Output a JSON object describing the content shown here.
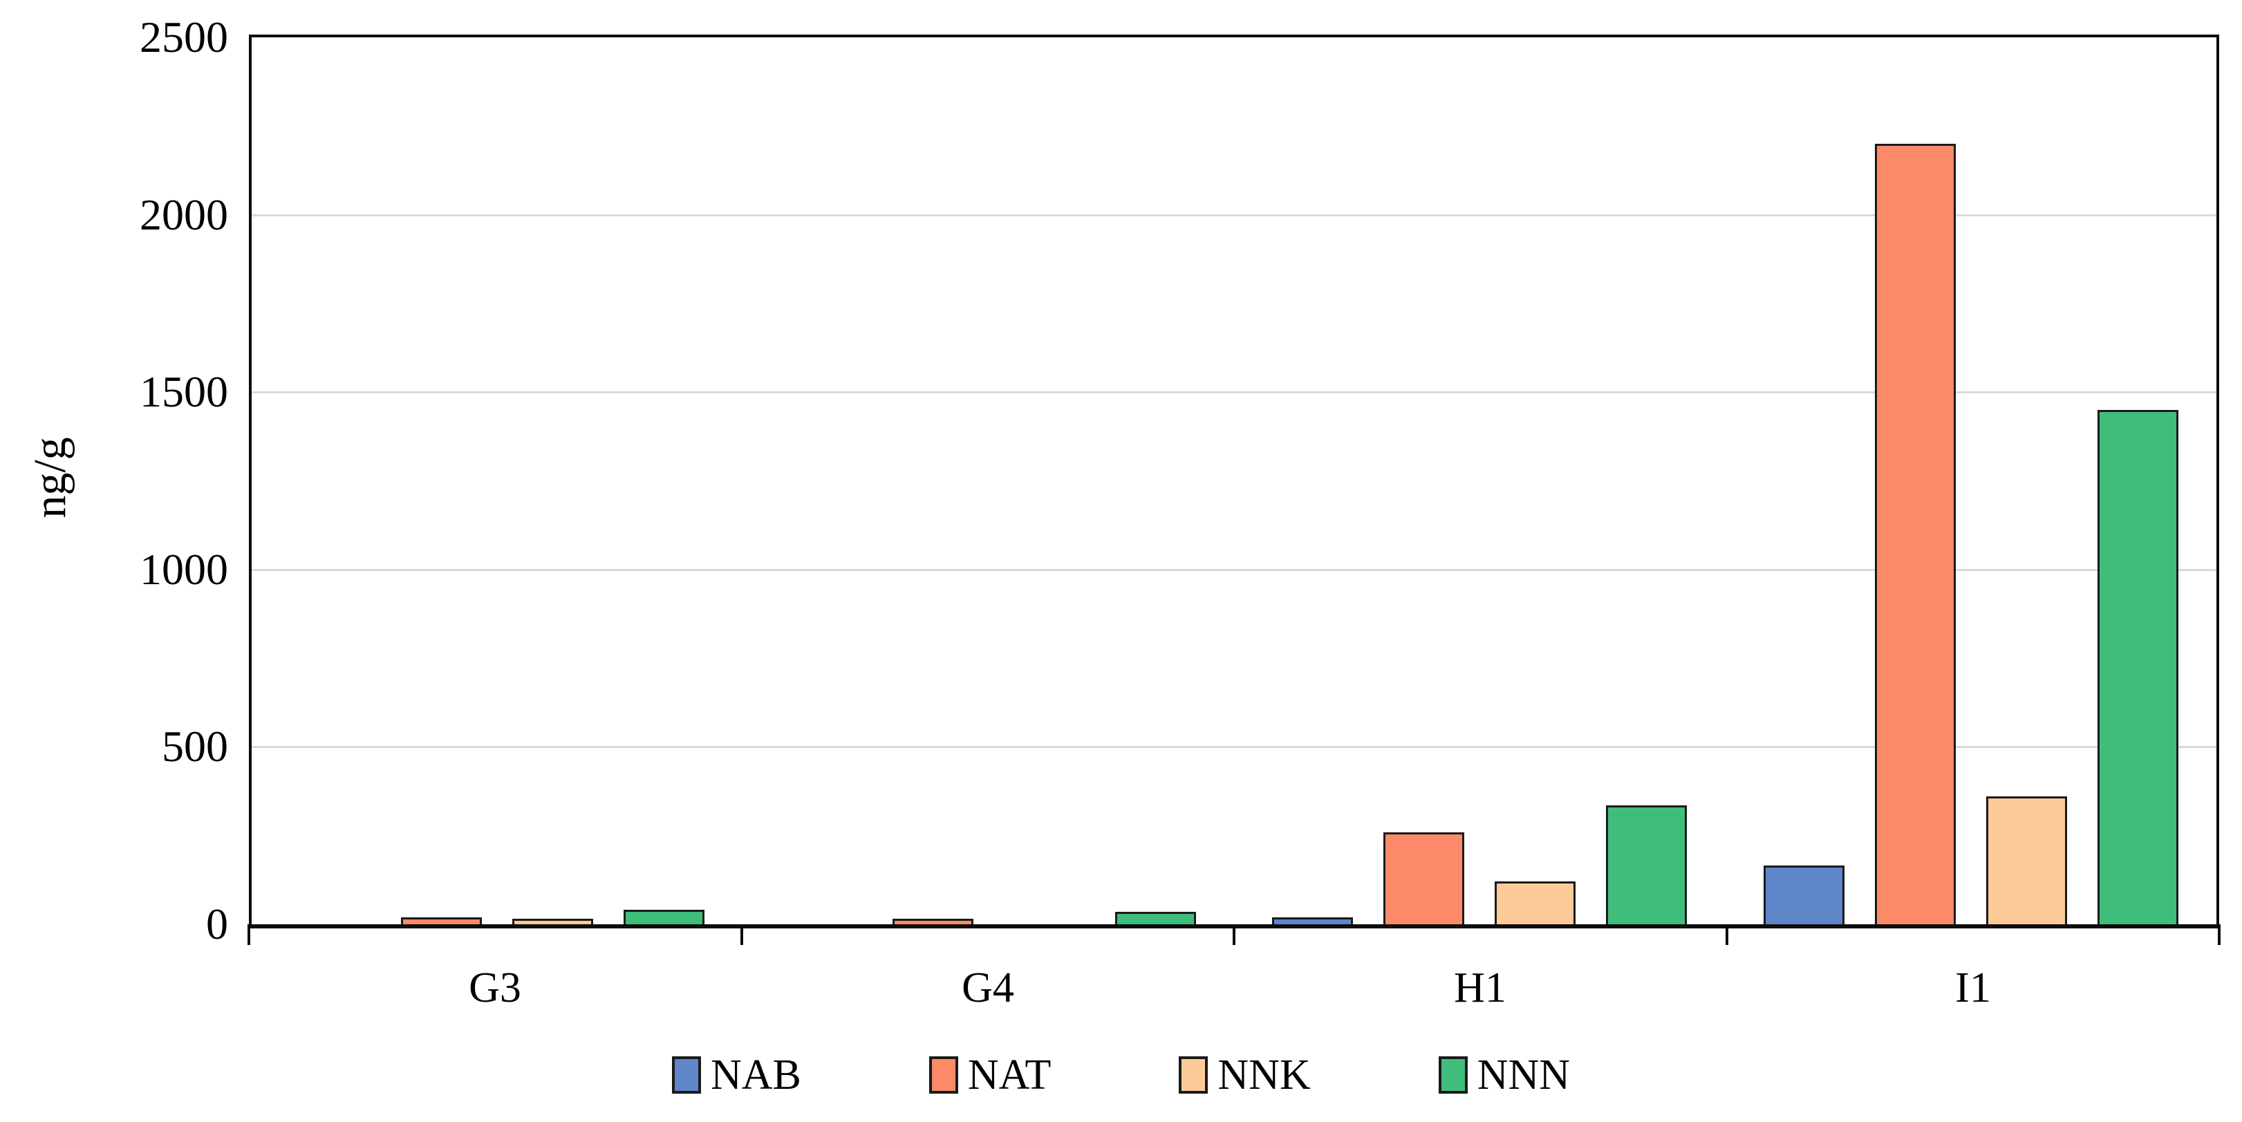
{
  "chart_data": {
    "type": "bar",
    "title": "",
    "categories": [
      "G3",
      "G4",
      "H1",
      "I1"
    ],
    "series": [
      {
        "name": "NAB",
        "color": "#5E86C8",
        "values": [
          0,
          0,
          20,
          165
        ]
      },
      {
        "name": "NAT",
        "color": "#FB8A68",
        "values": [
          20,
          15,
          260,
          2200
        ]
      },
      {
        "name": "NNK",
        "color": "#FDCB98",
        "values": [
          15,
          0,
          120,
          360
        ]
      },
      {
        "name": "NNN",
        "color": "#3FBE7B",
        "values": [
          40,
          35,
          335,
          1450
        ]
      }
    ],
    "xlabel": "",
    "ylabel": "ng/g",
    "ylim": [
      0,
      2500
    ],
    "yticks": [
      0,
      500,
      1000,
      1500,
      2000,
      2500
    ],
    "grid": "horizontal",
    "gridline_color": "#D9D9D9",
    "bar_border_color": "#1a1a1a",
    "axis_color": "#0d0d0d",
    "legend_position": "bottom"
  }
}
